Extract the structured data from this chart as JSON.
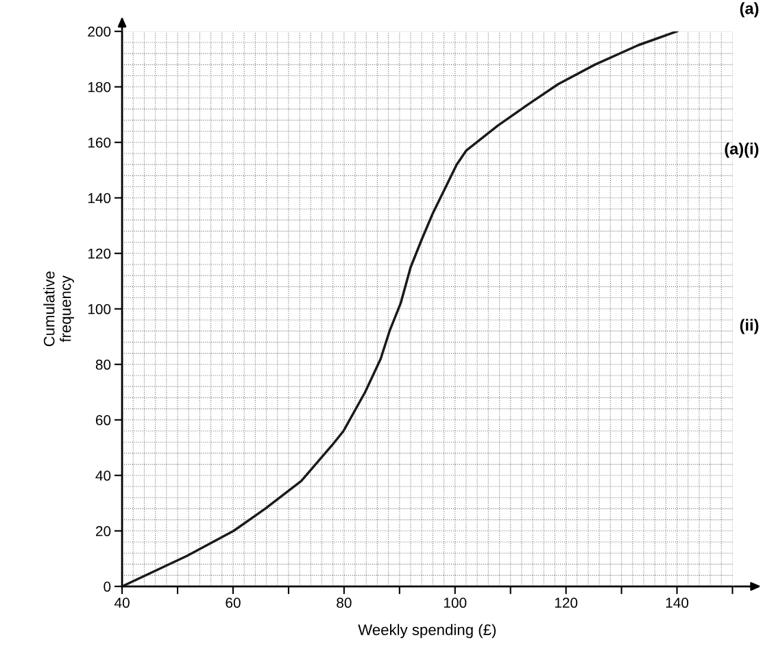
{
  "chart_data": {
    "type": "line",
    "xlabel": "Weekly spending (£)",
    "ylabel": "Cumulative\nfrequency",
    "annotations": [
      "(a)",
      "(a)(i)",
      "(ii)"
    ],
    "x": [
      40,
      51.7,
      60.1,
      65.8,
      72.3,
      77.9,
      79.9,
      83.8,
      86.6,
      88.2,
      90.2,
      92,
      94,
      95.9,
      100.3,
      102,
      107.7,
      113.4,
      118.6,
      125.2,
      133,
      140
    ],
    "series": [
      {
        "color": "#1a1a1a",
        "values": [
          0,
          11,
          20,
          28,
          38,
          51,
          56,
          70,
          82,
          92,
          102,
          115,
          125,
          134,
          152,
          157,
          166,
          174,
          181,
          188,
          195,
          200
        ]
      }
    ],
    "xlim": [
      40,
      150
    ],
    "ylim": [
      0,
      200
    ],
    "xticks": [
      40,
      {
        "value": 50,
        "label": null
      },
      60,
      {
        "value": 70,
        "label": null
      },
      80,
      {
        "value": 90,
        "label": null
      },
      100,
      {
        "value": 110,
        "label": null
      },
      120,
      {
        "value": 130,
        "label": null
      },
      140,
      {
        "value": 150,
        "label": null
      }
    ],
    "yticks": [
      0,
      20,
      40,
      60,
      80,
      100,
      120,
      140,
      160,
      180,
      200
    ],
    "grid": true,
    "legend": false,
    "marker": "none",
    "line_style": "solid"
  }
}
